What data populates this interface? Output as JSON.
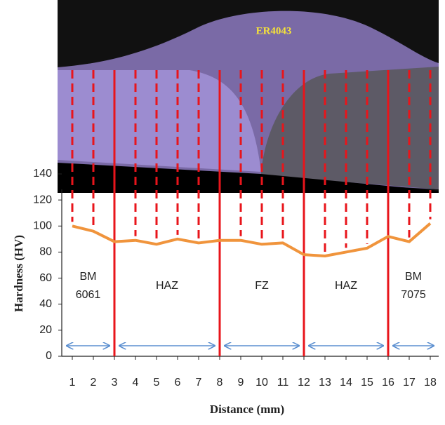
{
  "chart_data": {
    "type": "line",
    "xlabel": "Distance (mm)",
    "ylabel": "Hardness (HV)",
    "x": [
      1,
      2,
      3,
      4,
      5,
      6,
      7,
      8,
      9,
      10,
      11,
      12,
      13,
      14,
      15,
      16,
      17,
      18
    ],
    "series": [
      {
        "color": "#f0943c",
        "values": [
          100,
          96,
          88,
          89,
          86,
          90,
          87,
          89,
          89,
          86,
          87,
          78,
          77,
          80,
          83,
          92,
          88,
          102
        ]
      }
    ],
    "xlim": [
      0.5,
      18.4
    ],
    "ylim": [
      0,
      140
    ],
    "xticks": [
      1,
      2,
      3,
      4,
      5,
      6,
      7,
      8,
      9,
      10,
      11,
      12,
      13,
      14,
      15,
      16,
      17,
      18
    ],
    "yticks": [
      0,
      20,
      40,
      60,
      80,
      100,
      120,
      140
    ],
    "zone_boundaries": [
      3,
      8,
      12,
      16
    ],
    "zone_labels": [
      [
        "BM",
        "6061"
      ],
      [
        "HAZ"
      ],
      [
        "FZ"
      ],
      [
        "HAZ"
      ],
      [
        "BM",
        "7075"
      ]
    ],
    "filler_label": "ER4043"
  }
}
